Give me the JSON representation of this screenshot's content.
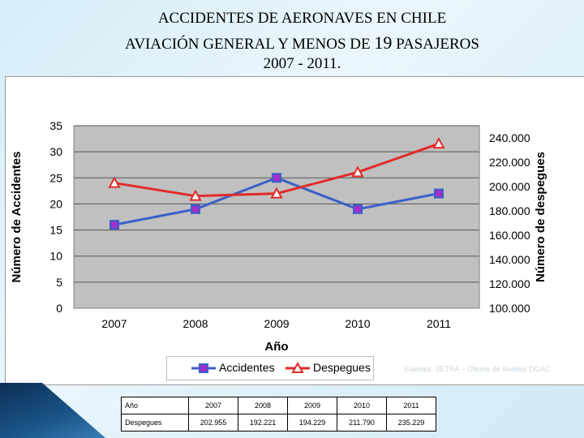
{
  "title": {
    "line1": "ACCIDENTES DE AERONAVES EN CHILE",
    "line2_part1": "AVIACIÓN GENERAL Y MENOS DE ",
    "line2_number": "19",
    "line2_part2": " PASAJEROS",
    "line3": "2007 - 2011."
  },
  "source_note": "Fuentes: SETRA – Oficina de Análisis DGAC",
  "table": {
    "header_label": "Año",
    "row_label": "Despegues",
    "years": [
      "2007",
      "2008",
      "2009",
      "2010",
      "2011"
    ],
    "values": [
      "202.955",
      "192.221",
      "194.229",
      "211.790",
      "235.229"
    ]
  },
  "chart_data": {
    "type": "line",
    "categories": [
      "2007",
      "2008",
      "2009",
      "2010",
      "2011"
    ],
    "xlabel": "Año",
    "ylabel_left": "Número de Accidentes",
    "ylabel_right": "Número de despegues",
    "ylim_left": [
      0,
      35
    ],
    "yticks_left": [
      "0",
      "5",
      "10",
      "15",
      "20",
      "25",
      "30",
      "35"
    ],
    "ylim_right": [
      100000,
      250000
    ],
    "yticks_right_values": [
      100000,
      120000,
      140000,
      160000,
      180000,
      200000,
      220000,
      240000
    ],
    "yticks_right": [
      "100.000",
      "120.000",
      "140.000",
      "160.000",
      "180.000",
      "200.000",
      "220.000",
      "240.000"
    ],
    "grid": true,
    "legend_position": "bottom",
    "series": [
      {
        "name": "Accidentes",
        "axis": "left",
        "color": "#3a5fc8",
        "marker": "square",
        "marker_color": "#a030c8",
        "values": [
          16,
          19,
          25,
          19,
          22
        ]
      },
      {
        "name": "Despegues",
        "axis": "right",
        "color": "#e22a2a",
        "marker": "triangle",
        "values": [
          202955,
          192221,
          194229,
          211790,
          235229
        ]
      }
    ]
  }
}
